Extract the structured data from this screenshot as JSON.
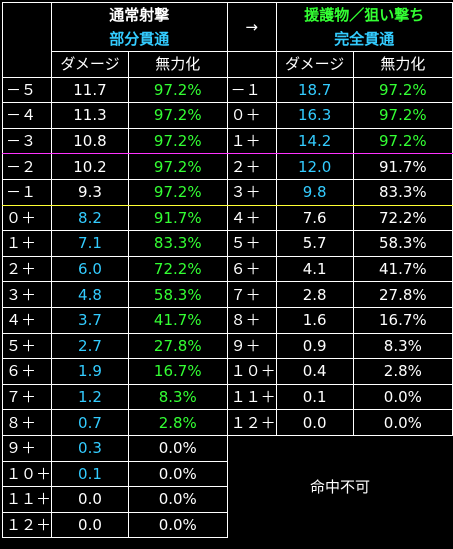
{
  "header": {
    "left_title": "通常射撃",
    "left_subtitle": "部分貫通",
    "arrow": "→",
    "right_title": "援護物／狙い撃ち",
    "right_subtitle": "完全貫通",
    "col_damage": "ダメージ",
    "col_nullify": "無力化"
  },
  "colors": {
    "white": "#ffffff",
    "green": "#33ff33",
    "cyan": "#33ccff",
    "magenta_line": "#ff33ff",
    "yellow_line": "#ffff33"
  },
  "rows": [
    {
      "ll": "－５",
      "ld": "11.7",
      "ldc": "white",
      "ln": "97.2%",
      "lnc": "green",
      "rl": "－１",
      "rd": "18.7",
      "rdc": "cyan",
      "rn": "97.2%",
      "rnc": "green"
    },
    {
      "ll": "－４",
      "ld": "11.3",
      "ldc": "white",
      "ln": "97.2%",
      "lnc": "green",
      "rl": "０＋",
      "rd": "16.3",
      "rdc": "cyan",
      "rn": "97.2%",
      "rnc": "green"
    },
    {
      "ll": "－３",
      "ld": "10.8",
      "ldc": "white",
      "ln": "97.2%",
      "lnc": "green",
      "rl": "１＋",
      "rd": "14.2",
      "rdc": "cyan",
      "rn": "97.2%",
      "rnc": "green"
    },
    {
      "ll": "－２",
      "ld": "10.2",
      "ldc": "white",
      "ln": "97.2%",
      "lnc": "green",
      "rl": "２＋",
      "rd": "12.0",
      "rdc": "cyan",
      "rn": "91.7%",
      "rnc": "white"
    },
    {
      "ll": "－１",
      "ld": "9.3",
      "ldc": "white",
      "ln": "97.2%",
      "lnc": "green",
      "rl": "３＋",
      "rd": "9.8",
      "rdc": "cyan",
      "rn": "83.3%",
      "rnc": "white"
    },
    {
      "ll": "０＋",
      "ld": "8.2",
      "ldc": "cyan",
      "ln": "91.7%",
      "lnc": "green",
      "rl": "４＋",
      "rd": "7.6",
      "rdc": "white",
      "rn": "72.2%",
      "rnc": "white"
    },
    {
      "ll": "１＋",
      "ld": "7.1",
      "ldc": "cyan",
      "ln": "83.3%",
      "lnc": "green",
      "rl": "５＋",
      "rd": "5.7",
      "rdc": "white",
      "rn": "58.3%",
      "rnc": "white"
    },
    {
      "ll": "２＋",
      "ld": "6.0",
      "ldc": "cyan",
      "ln": "72.2%",
      "lnc": "green",
      "rl": "６＋",
      "rd": "4.1",
      "rdc": "white",
      "rn": "41.7%",
      "rnc": "white"
    },
    {
      "ll": "３＋",
      "ld": "4.8",
      "ldc": "cyan",
      "ln": "58.3%",
      "lnc": "green",
      "rl": "７＋",
      "rd": "2.8",
      "rdc": "white",
      "rn": "27.8%",
      "rnc": "white"
    },
    {
      "ll": "４＋",
      "ld": "3.7",
      "ldc": "cyan",
      "ln": "41.7%",
      "lnc": "green",
      "rl": "８＋",
      "rd": "1.6",
      "rdc": "white",
      "rn": "16.7%",
      "rnc": "white"
    },
    {
      "ll": "５＋",
      "ld": "2.7",
      "ldc": "cyan",
      "ln": "27.8%",
      "lnc": "green",
      "rl": "９＋",
      "rd": "0.9",
      "rdc": "white",
      "rn": "8.3%",
      "rnc": "white"
    },
    {
      "ll": "６＋",
      "ld": "1.9",
      "ldc": "cyan",
      "ln": "16.7%",
      "lnc": "green",
      "rl": "１０＋",
      "rd": "0.4",
      "rdc": "white",
      "rn": "2.8%",
      "rnc": "white"
    },
    {
      "ll": "７＋",
      "ld": "1.2",
      "ldc": "cyan",
      "ln": "8.3%",
      "lnc": "green",
      "rl": "１１＋",
      "rd": "0.1",
      "rdc": "white",
      "rn": "0.0%",
      "rnc": "white"
    },
    {
      "ll": "８＋",
      "ld": "0.7",
      "ldc": "cyan",
      "ln": "2.8%",
      "lnc": "green",
      "rl": "１２＋",
      "rd": "0.0",
      "rdc": "white",
      "rn": "0.0%",
      "rnc": "white"
    },
    {
      "ll": "９＋",
      "ld": "0.3",
      "ldc": "cyan",
      "ln": "0.0%",
      "lnc": "white"
    },
    {
      "ll": "１０＋",
      "ld": "0.1",
      "ldc": "cyan",
      "ln": "0.0%",
      "lnc": "white"
    },
    {
      "ll": "１１＋",
      "ld": "0.0",
      "ldc": "white",
      "ln": "0.0%",
      "lnc": "white"
    },
    {
      "ll": "１２＋",
      "ld": "0.0",
      "ldc": "white",
      "ln": "0.0%",
      "lnc": "white"
    }
  ],
  "right_footer_text": "命中不可"
}
